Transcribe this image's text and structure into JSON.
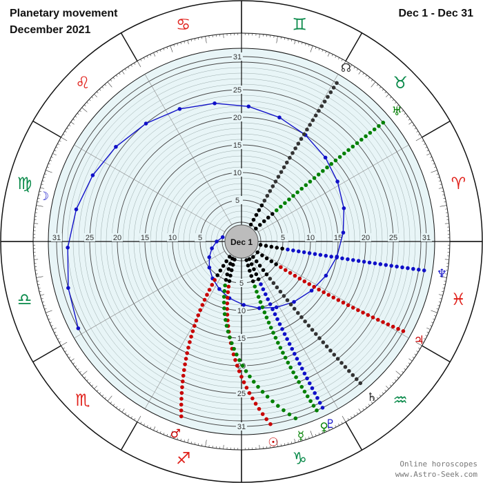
{
  "header": {
    "title": "Planetary movement",
    "subtitle": "December 2021",
    "date_range": "Dec 1 - Dec 31"
  },
  "center_label": "Dec 1",
  "footer": {
    "line1": "Online horoscopes",
    "line2": "www.Astro-Seek.com"
  },
  "zodiac": [
    {
      "name": "Aries",
      "glyph": "♈"
    },
    {
      "name": "Taurus",
      "glyph": "♉"
    },
    {
      "name": "Gemini",
      "glyph": "♊"
    },
    {
      "name": "Cancer",
      "glyph": "♋"
    },
    {
      "name": "Leo",
      "glyph": "♌"
    },
    {
      "name": "Virgo",
      "glyph": "♍"
    },
    {
      "name": "Libra",
      "glyph": "♎"
    },
    {
      "name": "Scorpio",
      "glyph": "♏"
    },
    {
      "name": "Sagittarius",
      "glyph": "♐"
    },
    {
      "name": "Capricorn",
      "glyph": "♑"
    },
    {
      "name": "Aquarius",
      "glyph": "♒"
    },
    {
      "name": "Pisces",
      "glyph": "♓"
    }
  ],
  "chart_data": {
    "type": "polar-scatter",
    "radial_axis": {
      "min": 1,
      "max": 31,
      "tick_labels": [
        "5",
        "10",
        "15",
        "20",
        "25",
        "31"
      ]
    },
    "angular_axis": "zodiac longitude",
    "series": [
      {
        "name": "Moon",
        "glyph": "☽",
        "color": "#1010c8",
        "points": [
          [
            1,
            167
          ],
          [
            2,
            180
          ],
          [
            3,
            193
          ],
          [
            4,
            206
          ],
          [
            5,
            219
          ],
          [
            6,
            232
          ],
          [
            7,
            245
          ],
          [
            8,
            258
          ],
          [
            9,
            272
          ],
          [
            10,
            285
          ],
          [
            11,
            298
          ],
          [
            12,
            311
          ],
          [
            13,
            325
          ],
          [
            14,
            338
          ],
          [
            15,
            351
          ],
          [
            16,
            5
          ],
          [
            17,
            18
          ],
          [
            18,
            32
          ],
          [
            19,
            45
          ],
          [
            20,
            59
          ],
          [
            21,
            73
          ],
          [
            22,
            87
          ],
          [
            23,
            101
          ],
          [
            24,
            115
          ],
          [
            25,
            129
          ],
          [
            26,
            143
          ],
          [
            27,
            156
          ],
          [
            28,
            169
          ],
          [
            29,
            182
          ],
          [
            30,
            195
          ],
          [
            31,
            208
          ]
        ]
      },
      {
        "name": "Sun",
        "glyph": "☉",
        "color": "#c80000",
        "start": 249,
        "end": 279
      },
      {
        "name": "Mercury",
        "glyph": "☿",
        "color": "#008000",
        "start": 242,
        "end": 287
      },
      {
        "name": "Venus",
        "glyph": "♀",
        "color": "#008000",
        "start": 285,
        "end": 294
      },
      {
        "name": "Mars",
        "glyph": "♂",
        "color": "#c80000",
        "start": 232,
        "end": 251
      },
      {
        "name": "Jupiter",
        "glyph": "♃",
        "color": "#c80000",
        "start": 326,
        "end": 331
      },
      {
        "name": "Saturn",
        "glyph": "♄",
        "color": "#333333",
        "start": 307,
        "end": 310
      },
      {
        "name": "Uranus",
        "glyph": "♅",
        "color": "#008000",
        "start": 42,
        "end": 40
      },
      {
        "name": "Neptune",
        "glyph": "♆",
        "color": "#1010c8",
        "start": 350,
        "end": 351
      },
      {
        "name": "Pluto",
        "glyph": "♇",
        "color": "#1010c8",
        "start": 294,
        "end": 296
      },
      {
        "name": "North Node",
        "glyph": "☊",
        "color": "#333333",
        "start": 61,
        "end": 59
      }
    ]
  }
}
